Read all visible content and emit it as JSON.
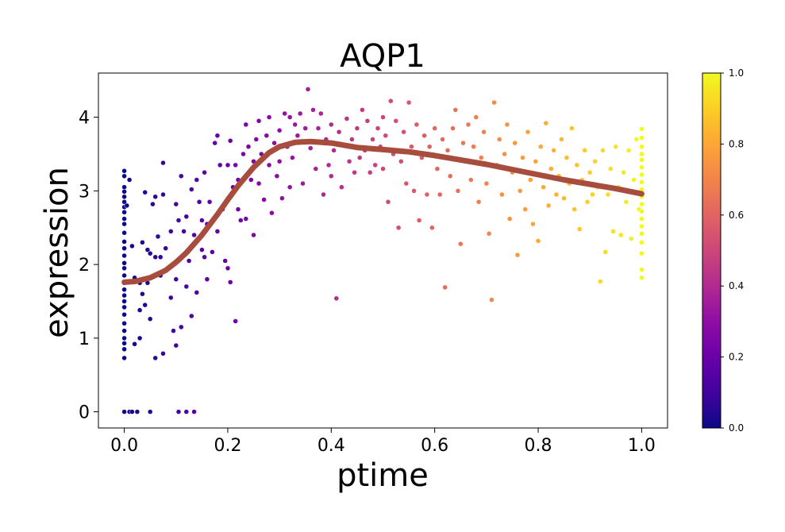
{
  "chart_data": {
    "type": "scatter",
    "title": "AQP1",
    "xlabel": "ptime",
    "ylabel": "expression",
    "xlim": [
      -0.05,
      1.05
    ],
    "ylim": [
      -0.22,
      4.6
    ],
    "xticks": [
      0.0,
      0.2,
      0.4,
      0.6,
      0.8,
      1.0
    ],
    "xtick_labels": [
      "0.0",
      "0.2",
      "0.4",
      "0.6",
      "0.8",
      "1.0"
    ],
    "yticks": [
      0,
      1,
      2,
      3,
      4
    ],
    "ytick_labels": [
      "0",
      "1",
      "2",
      "3",
      "4"
    ],
    "grid": false,
    "colormap": "plasma",
    "colorbar": {
      "ticks": [
        0.0,
        0.2,
        0.4,
        0.6,
        0.8,
        1.0
      ],
      "tick_labels": [
        "0.0",
        "0.2",
        "0.4",
        "0.6",
        "0.8",
        "1.0"
      ]
    },
    "trend_color": "#a84c3e",
    "trend_line": {
      "x": [
        0.0,
        0.02,
        0.05,
        0.08,
        0.1,
        0.12,
        0.15,
        0.18,
        0.2,
        0.22,
        0.25,
        0.28,
        0.3,
        0.33,
        0.36,
        0.4,
        0.45,
        0.5,
        0.55,
        0.6,
        0.65,
        0.7,
        0.75,
        0.8,
        0.85,
        0.9,
        0.95,
        1.0
      ],
      "y": [
        1.76,
        1.77,
        1.82,
        1.92,
        2.03,
        2.16,
        2.4,
        2.68,
        2.88,
        3.07,
        3.32,
        3.52,
        3.6,
        3.66,
        3.67,
        3.65,
        3.59,
        3.56,
        3.53,
        3.48,
        3.42,
        3.36,
        3.29,
        3.22,
        3.15,
        3.09,
        3.03,
        2.96
      ]
    },
    "points": [
      [
        0.0,
        3.27
      ],
      [
        0.0,
        3.2
      ],
      [
        0.0,
        3.05
      ],
      [
        0.0,
        2.99
      ],
      [
        0.0,
        2.92
      ],
      [
        0.0,
        2.85
      ],
      [
        0.0,
        2.78
      ],
      [
        0.0,
        2.71
      ],
      [
        0.0,
        2.62
      ],
      [
        0.0,
        2.55
      ],
      [
        0.0,
        2.43
      ],
      [
        0.0,
        2.31
      ],
      [
        0.0,
        2.22
      ],
      [
        0.0,
        2.12
      ],
      [
        0.0,
        2.02
      ],
      [
        0.0,
        1.95
      ],
      [
        0.0,
        1.85
      ],
      [
        0.0,
        1.75
      ],
      [
        0.0,
        1.66
      ],
      [
        0.0,
        1.58
      ],
      [
        0.0,
        1.5
      ],
      [
        0.0,
        1.42
      ],
      [
        0.0,
        1.32
      ],
      [
        0.0,
        1.2
      ],
      [
        0.0,
        1.1
      ],
      [
        0.0,
        1.0
      ],
      [
        0.0,
        0.93
      ],
      [
        0.0,
        0.85
      ],
      [
        0.0,
        0.73
      ],
      [
        0.0,
        0.0
      ],
      [
        0.005,
        2.8
      ],
      [
        0.01,
        3.15
      ],
      [
        0.01,
        0.0
      ],
      [
        0.015,
        2.25
      ],
      [
        0.015,
        0.0
      ],
      [
        0.02,
        1.8
      ],
      [
        0.02,
        0.92
      ],
      [
        0.02,
        1.82
      ],
      [
        0.025,
        0.0
      ],
      [
        0.03,
        1.75
      ],
      [
        0.03,
        1.38
      ],
      [
        0.03,
        1.0
      ],
      [
        0.035,
        2.3
      ],
      [
        0.035,
        1.6
      ],
      [
        0.04,
        2.98
      ],
      [
        0.04,
        1.45
      ],
      [
        0.045,
        2.2
      ],
      [
        0.045,
        1.75
      ],
      [
        0.05,
        2.15
      ],
      [
        0.05,
        1.26
      ],
      [
        0.05,
        0.0
      ],
      [
        0.055,
        2.82
      ],
      [
        0.06,
        2.92
      ],
      [
        0.06,
        2.1
      ],
      [
        0.06,
        0.73
      ],
      [
        0.065,
        2.38
      ],
      [
        0.07,
        2.1
      ],
      [
        0.07,
        1.85
      ],
      [
        0.075,
        3.38
      ],
      [
        0.075,
        2.95
      ],
      [
        0.075,
        0.79
      ],
      [
        0.08,
        2.22
      ],
      [
        0.085,
        1.95
      ],
      [
        0.09,
        2.45
      ],
      [
        0.09,
        1.55
      ],
      [
        0.095,
        1.1
      ],
      [
        0.1,
        2.82
      ],
      [
        0.1,
        1.8
      ],
      [
        0.1,
        0.9
      ],
      [
        0.105,
        2.6
      ],
      [
        0.105,
        0.0
      ],
      [
        0.11,
        3.2
      ],
      [
        0.11,
        1.15
      ],
      [
        0.115,
        2.45
      ],
      [
        0.12,
        2.65
      ],
      [
        0.12,
        1.7
      ],
      [
        0.12,
        0.0
      ],
      [
        0.125,
        2.05
      ],
      [
        0.13,
        3.02
      ],
      [
        0.13,
        1.3
      ],
      [
        0.135,
        2.4
      ],
      [
        0.135,
        0.0
      ],
      [
        0.14,
        3.15
      ],
      [
        0.14,
        1.62
      ],
      [
        0.145,
        2.85
      ],
      [
        0.15,
        2.6
      ],
      [
        0.15,
        2.2
      ],
      [
        0.155,
        3.25
      ],
      [
        0.155,
        2.1
      ],
      [
        0.16,
        2.55
      ],
      [
        0.16,
        1.8
      ],
      [
        0.165,
        2.85
      ],
      [
        0.17,
        2.17
      ],
      [
        0.175,
        3.65
      ],
      [
        0.18,
        3.75
      ],
      [
        0.18,
        2.45
      ],
      [
        0.185,
        3.35
      ],
      [
        0.19,
        2.75
      ],
      [
        0.195,
        2.05
      ],
      [
        0.2,
        3.35
      ],
      [
        0.2,
        1.95
      ],
      [
        0.205,
        3.68
      ],
      [
        0.205,
        1.76
      ],
      [
        0.21,
        3.05
      ],
      [
        0.215,
        3.35
      ],
      [
        0.215,
        1.23
      ],
      [
        0.22,
        3.15
      ],
      [
        0.22,
        2.75
      ],
      [
        0.225,
        2.6
      ],
      [
        0.23,
        3.5
      ],
      [
        0.235,
        3.9
      ],
      [
        0.235,
        2.62
      ],
      [
        0.24,
        3.6
      ],
      [
        0.245,
        3.15
      ],
      [
        0.25,
        3.4
      ],
      [
        0.25,
        2.4
      ],
      [
        0.255,
        3.7
      ],
      [
        0.26,
        3.95
      ],
      [
        0.26,
        3.1
      ],
      [
        0.265,
        3.5
      ],
      [
        0.27,
        2.88
      ],
      [
        0.275,
        3.75
      ],
      [
        0.28,
        4.0
      ],
      [
        0.28,
        3.35
      ],
      [
        0.285,
        2.7
      ],
      [
        0.29,
        3.65
      ],
      [
        0.295,
        3.2
      ],
      [
        0.3,
        3.82
      ],
      [
        0.3,
        3.4
      ],
      [
        0.305,
        2.9
      ],
      [
        0.31,
        4.05
      ],
      [
        0.315,
        3.6
      ],
      [
        0.32,
        4.0
      ],
      [
        0.32,
        3.05
      ],
      [
        0.325,
        3.45
      ],
      [
        0.33,
        3.9
      ],
      [
        0.335,
        3.75
      ],
      [
        0.34,
        4.05
      ],
      [
        0.345,
        3.1
      ],
      [
        0.35,
        3.85
      ],
      [
        0.355,
        4.38
      ],
      [
        0.36,
        3.58
      ],
      [
        0.365,
        4.1
      ],
      [
        0.37,
        3.3
      ],
      [
        0.375,
        3.85
      ],
      [
        0.38,
        4.05
      ],
      [
        0.385,
        2.95
      ],
      [
        0.39,
        3.7
      ],
      [
        0.395,
        3.35
      ],
      [
        0.4,
        3.9
      ],
      [
        0.4,
        3.2
      ],
      [
        0.405,
        3.55
      ],
      [
        0.41,
        1.54
      ],
      [
        0.415,
        3.8
      ],
      [
        0.42,
        3.05
      ],
      [
        0.425,
        3.62
      ],
      [
        0.43,
        3.98
      ],
      [
        0.435,
        3.4
      ],
      [
        0.44,
        3.7
      ],
      [
        0.445,
        3.25
      ],
      [
        0.45,
        3.85
      ],
      [
        0.455,
        3.45
      ],
      [
        0.46,
        4.1
      ],
      [
        0.465,
        3.55
      ],
      [
        0.47,
        3.95
      ],
      [
        0.475,
        3.25
      ],
      [
        0.48,
        3.7
      ],
      [
        0.485,
        3.35
      ],
      [
        0.49,
        3.85
      ],
      [
        0.495,
        3.6
      ],
      [
        0.5,
        4.0
      ],
      [
        0.5,
        3.3
      ],
      [
        0.505,
        3.75
      ],
      [
        0.51,
        2.85
      ],
      [
        0.515,
        4.22
      ],
      [
        0.52,
        3.5
      ],
      [
        0.525,
        3.95
      ],
      [
        0.53,
        2.5
      ],
      [
        0.535,
        3.4
      ],
      [
        0.54,
        3.8
      ],
      [
        0.545,
        3.1
      ],
      [
        0.55,
        4.2
      ],
      [
        0.555,
        3.6
      ],
      [
        0.56,
        3.0
      ],
      [
        0.565,
        3.9
      ],
      [
        0.57,
        2.6
      ],
      [
        0.575,
        3.45
      ],
      [
        0.58,
        3.75
      ],
      [
        0.585,
        2.95
      ],
      [
        0.59,
        3.6
      ],
      [
        0.595,
        2.5
      ],
      [
        0.6,
        3.85
      ],
      [
        0.605,
        3.3
      ],
      [
        0.61,
        2.95
      ],
      [
        0.615,
        3.7
      ],
      [
        0.62,
        1.69
      ],
      [
        0.625,
        3.55
      ],
      [
        0.63,
        3.2
      ],
      [
        0.635,
        3.85
      ],
      [
        0.64,
        4.1
      ],
      [
        0.645,
        3.0
      ],
      [
        0.65,
        2.28
      ],
      [
        0.655,
        3.65
      ],
      [
        0.66,
        3.4
      ],
      [
        0.665,
        3.9
      ],
      [
        0.67,
        3.15
      ],
      [
        0.675,
        3.6
      ],
      [
        0.68,
        4.0
      ],
      [
        0.685,
        2.85
      ],
      [
        0.69,
        3.45
      ],
      [
        0.695,
        3.8
      ],
      [
        0.7,
        3.1
      ],
      [
        0.705,
        2.42
      ],
      [
        0.71,
        1.52
      ],
      [
        0.715,
        4.2
      ],
      [
        0.72,
        3.35
      ],
      [
        0.725,
        3.7
      ],
      [
        0.73,
        2.95
      ],
      [
        0.735,
        3.5
      ],
      [
        0.74,
        3.9
      ],
      [
        0.745,
        2.62
      ],
      [
        0.75,
        3.25
      ],
      [
        0.755,
        3.65
      ],
      [
        0.76,
        2.13
      ],
      [
        0.765,
        3.0
      ],
      [
        0.77,
        3.45
      ],
      [
        0.775,
        2.75
      ],
      [
        0.78,
        3.8
      ],
      [
        0.785,
        3.15
      ],
      [
        0.79,
        2.55
      ],
      [
        0.795,
        3.4
      ],
      [
        0.8,
        2.32
      ],
      [
        0.805,
        3.6
      ],
      [
        0.81,
        3.05
      ],
      [
        0.815,
        3.92
      ],
      [
        0.82,
        2.8
      ],
      [
        0.825,
        3.3
      ],
      [
        0.83,
        3.55
      ],
      [
        0.835,
        2.95
      ],
      [
        0.84,
        3.2
      ],
      [
        0.845,
        3.7
      ],
      [
        0.85,
        2.9
      ],
      [
        0.855,
        3.45
      ],
      [
        0.86,
        3.1
      ],
      [
        0.865,
        3.85
      ],
      [
        0.87,
        2.75
      ],
      [
        0.875,
        3.35
      ],
      [
        0.88,
        2.48
      ],
      [
        0.885,
        3.15
      ],
      [
        0.89,
        3.55
      ],
      [
        0.895,
        2.85
      ],
      [
        0.9,
        3.25
      ],
      [
        0.905,
        2.95
      ],
      [
        0.91,
        3.4
      ],
      [
        0.915,
        3.05
      ],
      [
        0.92,
        1.77
      ],
      [
        0.925,
        3.55
      ],
      [
        0.93,
        2.17
      ],
      [
        0.935,
        2.95
      ],
      [
        0.94,
        3.3
      ],
      [
        0.945,
        2.45
      ],
      [
        0.95,
        3.6
      ],
      [
        0.955,
        3.05
      ],
      [
        0.96,
        2.4
      ],
      [
        0.965,
        3.25
      ],
      [
        0.97,
        2.85
      ],
      [
        0.975,
        3.55
      ],
      [
        0.98,
        2.35
      ],
      [
        0.985,
        3.15
      ],
      [
        0.99,
        3.7
      ],
      [
        0.995,
        2.75
      ],
      [
        1.0,
        3.84
      ],
      [
        1.0,
        3.72
      ],
      [
        1.0,
        3.6
      ],
      [
        1.0,
        3.5
      ],
      [
        1.0,
        3.42
      ],
      [
        1.0,
        3.32
      ],
      [
        1.0,
        3.22
      ],
      [
        1.0,
        3.12
      ],
      [
        1.0,
        3.02
      ],
      [
        1.0,
        2.92
      ],
      [
        1.0,
        2.82
      ],
      [
        1.0,
        2.72
      ],
      [
        1.0,
        2.62
      ],
      [
        1.0,
        2.52
      ],
      [
        1.0,
        2.42
      ],
      [
        1.0,
        2.3
      ],
      [
        1.0,
        2.15
      ],
      [
        1.0,
        1.93
      ],
      [
        1.0,
        1.82
      ]
    ]
  }
}
